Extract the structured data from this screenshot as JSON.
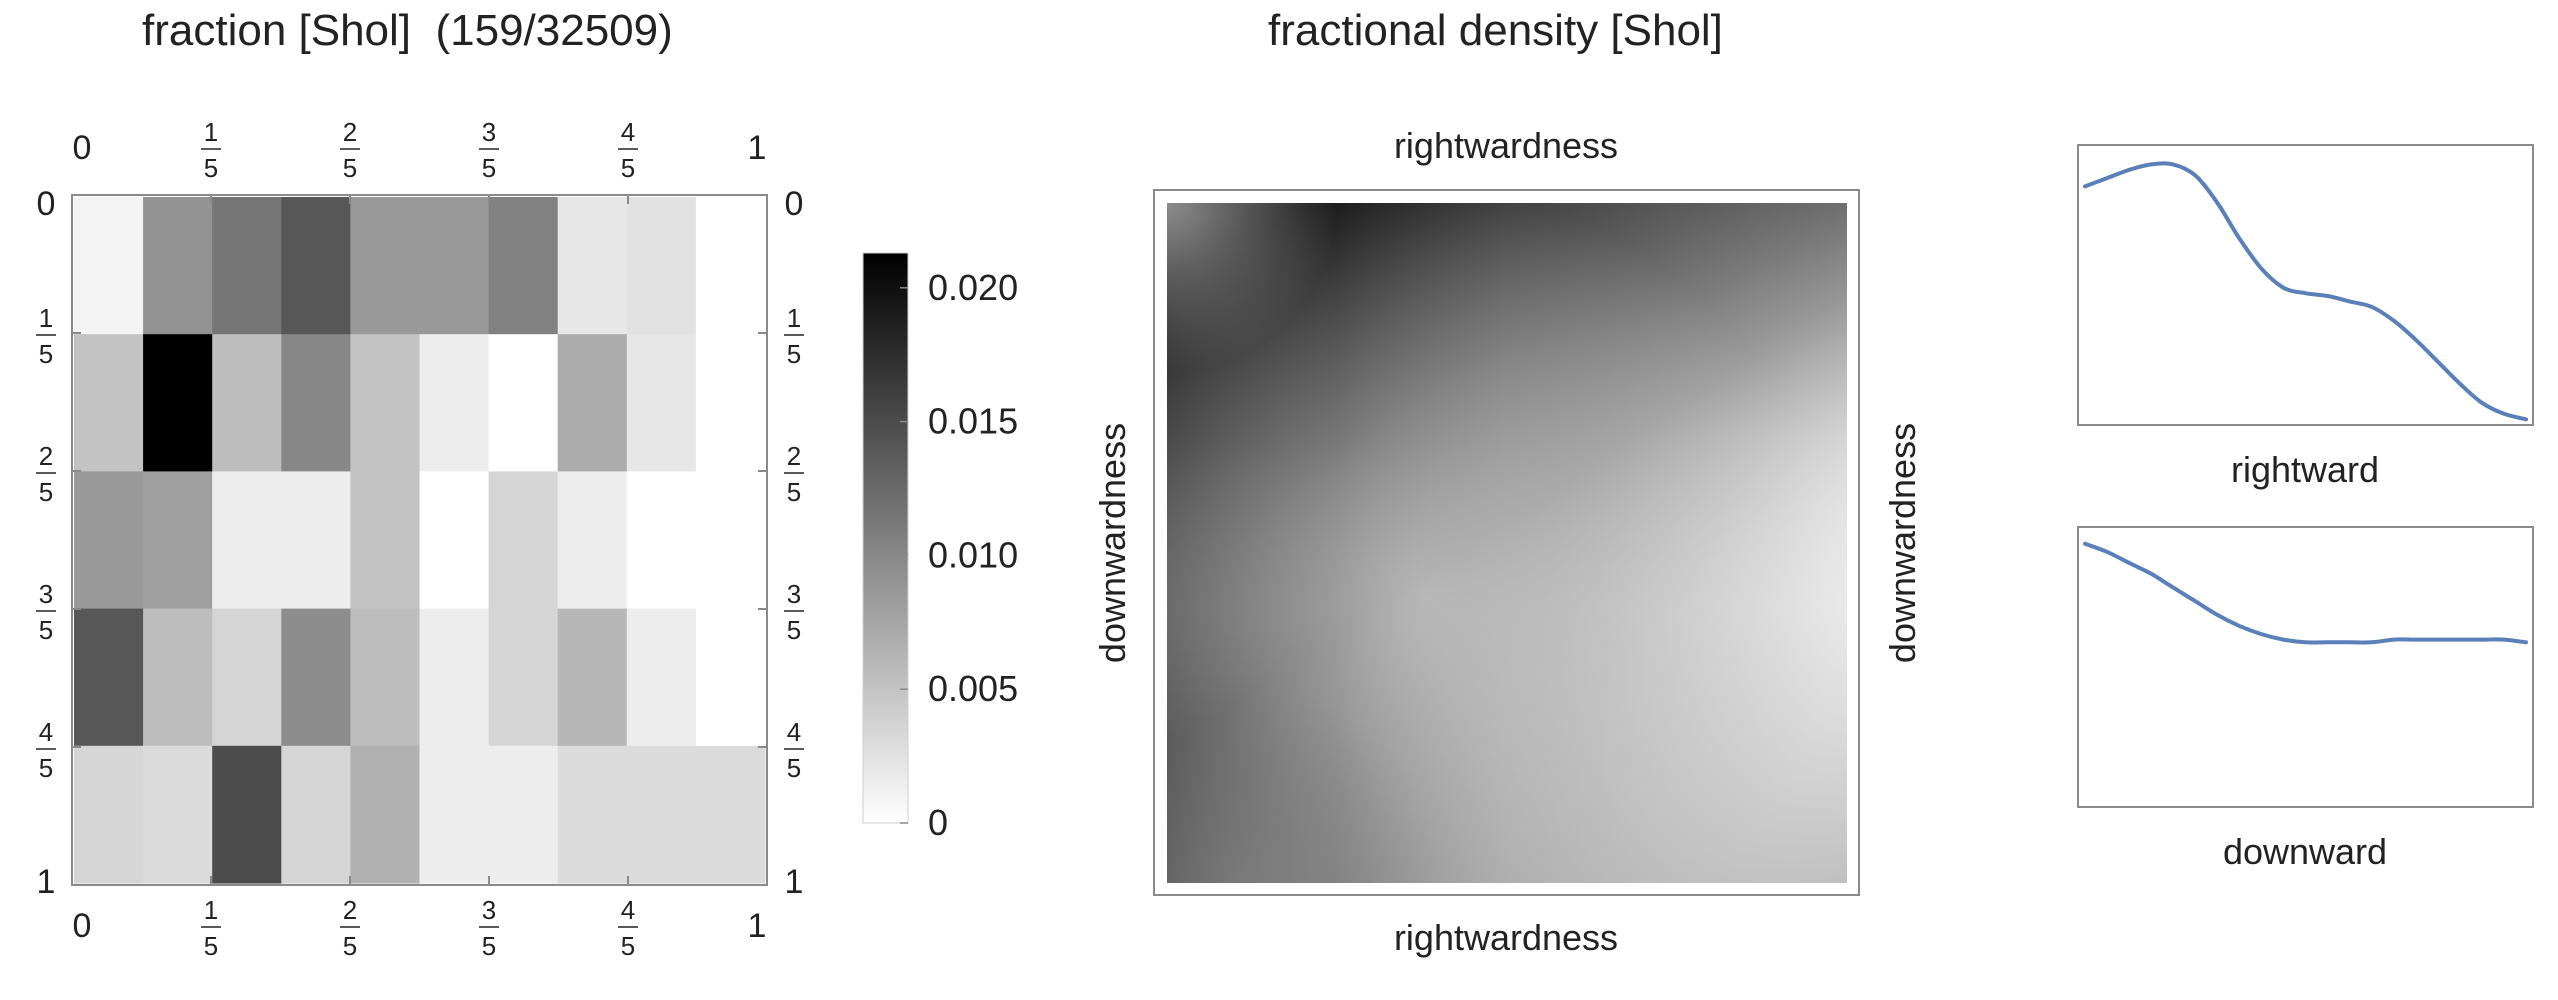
{
  "titles": {
    "left": "fraction [Shol]  (159/32509)",
    "middle": "fractional density [Shol]"
  },
  "colorbar": {
    "tick_labels": [
      "0.020",
      "0.015",
      "0.010",
      "0.005",
      "0"
    ],
    "tick_values": [
      0.02,
      0.015,
      0.01,
      0.005,
      0
    ],
    "range": [
      0,
      0.0213
    ]
  },
  "chart_data": [
    {
      "type": "heatmap",
      "title": "fraction [Shol]  (159/32509)",
      "x_tick_labels": [
        "0",
        "1/5",
        "2/5",
        "3/5",
        "4/5",
        "1"
      ],
      "y_tick_labels": [
        "0",
        "1/5",
        "2/5",
        "3/5",
        "4/5",
        "1"
      ],
      "xlim": [
        0,
        1
      ],
      "ylim": [
        0,
        1
      ],
      "grid_size": [
        10,
        5
      ],
      "colorscale": "white-to-black",
      "values": [
        [
          0.001,
          0.009,
          0.0115,
          0.014,
          0.0085,
          0.0085,
          0.0105,
          0.002,
          0.0025,
          0.0
        ],
        [
          0.005,
          0.0213,
          0.0055,
          0.01,
          0.005,
          0.0015,
          0.0,
          0.007,
          0.002,
          0.0
        ],
        [
          0.0085,
          0.008,
          0.0015,
          0.0015,
          0.005,
          0.0,
          0.0035,
          0.0015,
          0.0,
          0.0
        ],
        [
          0.014,
          0.0055,
          0.0035,
          0.0095,
          0.0055,
          0.0015,
          0.0035,
          0.006,
          0.0015,
          0.0
        ],
        [
          0.0035,
          0.003,
          0.015,
          0.0035,
          0.0065,
          0.0015,
          0.0015,
          0.003,
          0.003,
          0.003
        ]
      ]
    },
    {
      "type": "heatmap",
      "title": "fractional density [Shol]",
      "xlabel": "rightwardness",
      "ylabel": "downwardness",
      "colorscale": "white-to-black",
      "xlim": [
        0,
        1
      ],
      "ylim": [
        0,
        1
      ]
    },
    {
      "type": "line",
      "xlabel": "rightward",
      "series": [
        {
          "color": "#5b7fb8",
          "x": [
            0,
            0.05,
            0.1,
            0.15,
            0.2,
            0.25,
            0.3,
            0.35,
            0.4,
            0.45,
            0.5,
            0.55,
            0.6,
            0.65,
            0.7,
            0.75,
            0.8,
            0.85,
            0.9,
            0.95,
            1
          ],
          "y": [
            0.86,
            0.89,
            0.92,
            0.94,
            0.94,
            0.9,
            0.8,
            0.67,
            0.56,
            0.49,
            0.47,
            0.46,
            0.44,
            0.42,
            0.37,
            0.3,
            0.22,
            0.14,
            0.07,
            0.03,
            0.01
          ]
        }
      ]
    },
    {
      "type": "line",
      "xlabel": "downward",
      "series": [
        {
          "color": "#5b7fb8",
          "x": [
            0,
            0.05,
            0.1,
            0.15,
            0.2,
            0.25,
            0.3,
            0.35,
            0.4,
            0.45,
            0.5,
            0.55,
            0.6,
            0.65,
            0.7,
            0.75,
            0.8,
            0.85,
            0.9,
            0.95,
            1
          ],
          "y": [
            0.95,
            0.92,
            0.88,
            0.84,
            0.79,
            0.74,
            0.69,
            0.65,
            0.62,
            0.6,
            0.59,
            0.59,
            0.59,
            0.59,
            0.6,
            0.6,
            0.6,
            0.6,
            0.6,
            0.6,
            0.59
          ]
        }
      ]
    }
  ]
}
